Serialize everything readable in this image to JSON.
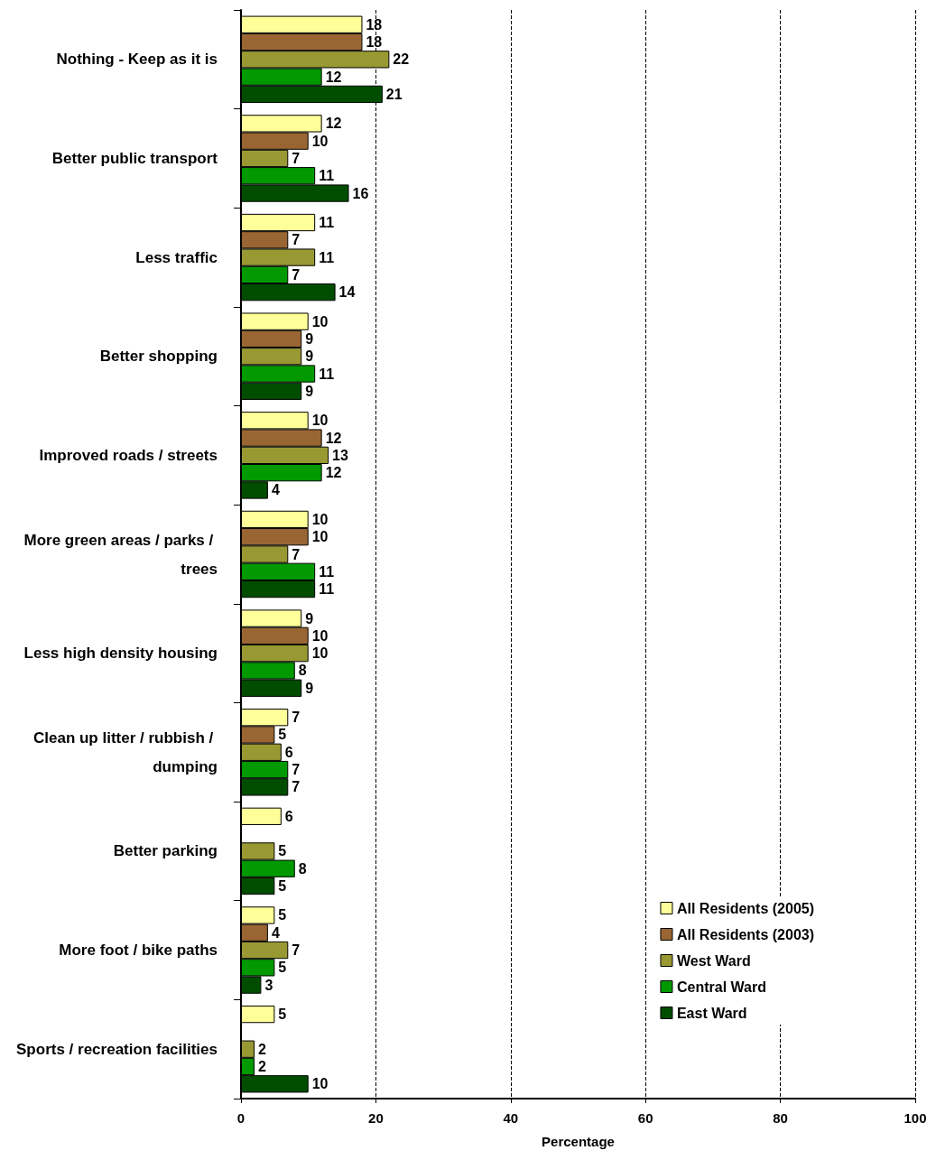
{
  "chart_data": {
    "type": "bar",
    "orientation": "horizontal",
    "xlabel": "Percentage",
    "categories": [
      "Nothing - Keep as it is",
      "Better public transport",
      "Less traffic",
      "Better shopping",
      "Improved roads / streets",
      "More green areas / parks / trees",
      "Less high density housing",
      "Clean up litter / rubbish / dumping",
      "Better parking",
      "More foot / bike paths",
      "Sports / recreation facilities"
    ],
    "series": [
      {
        "name": "All Residents (2005)",
        "color": "#ffff99",
        "values": [
          18,
          12,
          11,
          10,
          10,
          10,
          9,
          7,
          6,
          5,
          5
        ]
      },
      {
        "name": "All Residents (2003)",
        "color": "#996633",
        "values": [
          18,
          10,
          7,
          9,
          12,
          10,
          10,
          5,
          null,
          4,
          null
        ]
      },
      {
        "name": "West Ward",
        "color": "#999933",
        "values": [
          22,
          7,
          11,
          9,
          13,
          7,
          10,
          6,
          5,
          7,
          2
        ]
      },
      {
        "name": "Central Ward",
        "color": "#009900",
        "values": [
          12,
          11,
          7,
          11,
          12,
          11,
          8,
          7,
          8,
          5,
          2
        ]
      },
      {
        "name": "East Ward",
        "color": "#004d00",
        "values": [
          21,
          16,
          14,
          9,
          4,
          11,
          9,
          7,
          5,
          3,
          10
        ]
      }
    ],
    "xlim": [
      0,
      100
    ],
    "xticks": [
      0,
      20,
      40,
      60,
      80,
      100
    ],
    "grid": "x",
    "legend": "bottom right",
    "data_labels": true
  }
}
